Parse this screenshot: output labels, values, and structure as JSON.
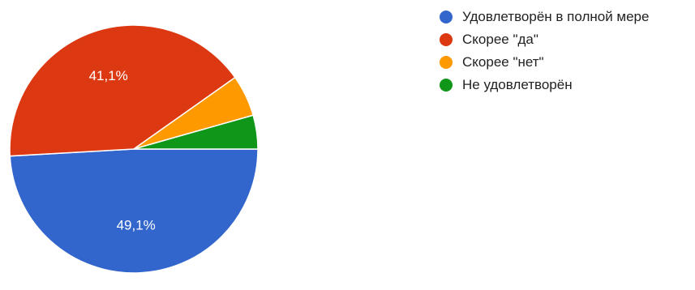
{
  "chart_data": {
    "type": "pie",
    "categories": [
      "Удовлетворён в полной мере",
      "Скорее \"да\"",
      "Скорее \"нет\"",
      "Не удовлетворён"
    ],
    "values": [
      49.1,
      41.1,
      5.4,
      4.4
    ],
    "data_labels": [
      "49,1%",
      "41,1%",
      "",
      ""
    ],
    "colors": [
      "#3366cc",
      "#dc3912",
      "#ff9900",
      "#109618"
    ],
    "legend_position": "right"
  }
}
